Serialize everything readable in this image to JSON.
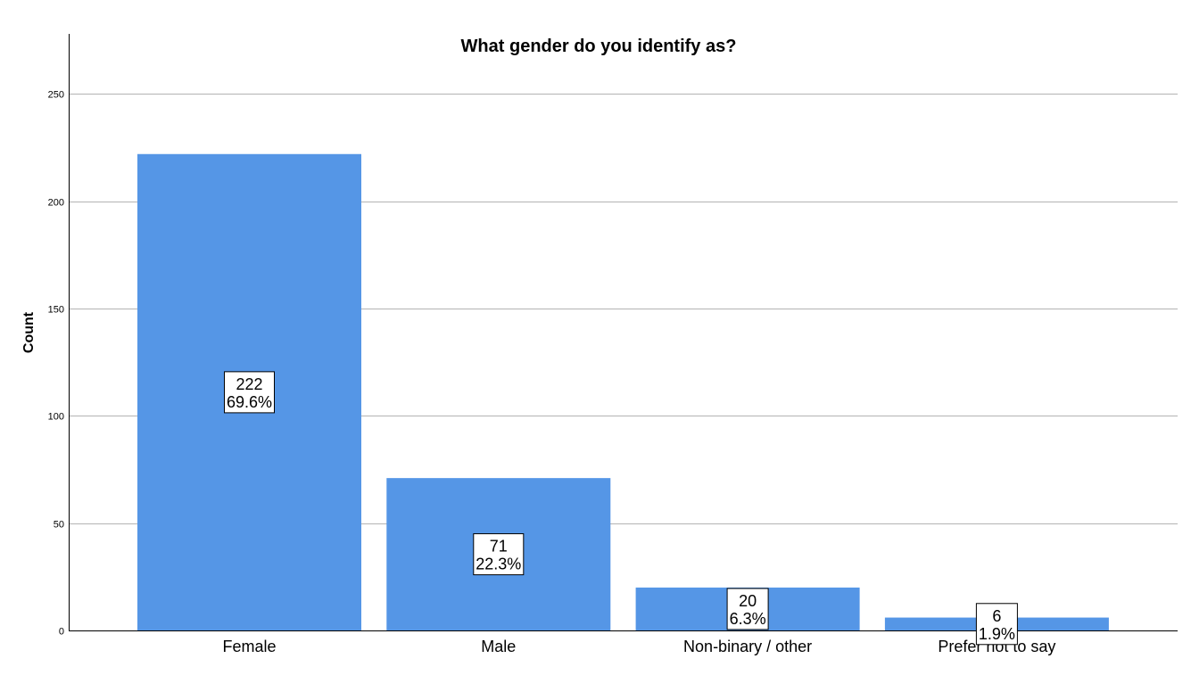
{
  "chart_data": {
    "type": "bar",
    "title": "What gender do you identify as?",
    "xlabel": "",
    "ylabel": "Count",
    "categories": [
      "Female",
      "Male",
      "Non-binary / other",
      "Prefer not to say"
    ],
    "values": [
      222,
      71,
      20,
      6
    ],
    "percentages": [
      "69.6%",
      "22.3%",
      "6.3%",
      "1.9%"
    ],
    "ylim": [
      0,
      278
    ],
    "yticks": [
      0,
      50,
      100,
      150,
      200,
      250
    ],
    "grid": true,
    "legend": "none",
    "bar_color": "#5596e6",
    "grid_color": "#b3b3b3"
  }
}
